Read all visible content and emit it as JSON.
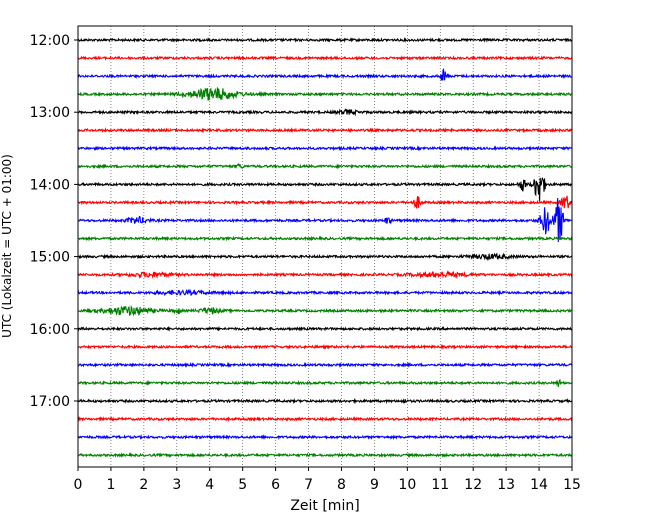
{
  "chart_data": {
    "type": "line",
    "title": "",
    "xlabel": "Zeit  [min]",
    "ylabel": "UTC (Lokalzeit = UTC + 01:00)",
    "xlim": [
      0,
      15
    ],
    "x_ticks": [
      "0",
      "1",
      "2",
      "3",
      "4",
      "5",
      "6",
      "7",
      "8",
      "9",
      "10",
      "11",
      "12",
      "13",
      "14",
      "15"
    ],
    "y_tick_labels": [
      "12:00",
      "13:00",
      "14:00",
      "15:00",
      "16:00",
      "17:00"
    ],
    "grid": "vertical dotted",
    "colors": [
      "#000000",
      "#ff0000",
      "#0000ff",
      "#008000"
    ],
    "traces": [
      {
        "time": "12:00",
        "color": "#000000",
        "events": []
      },
      {
        "time": "12:15",
        "color": "#ff0000",
        "events": []
      },
      {
        "time": "12:30",
        "color": "#0000ff",
        "events": [
          {
            "min": 11.1,
            "amp": 7,
            "width": 0.08
          }
        ]
      },
      {
        "time": "12:45",
        "color": "#008000",
        "events": [
          {
            "min": 4.1,
            "amp": 6,
            "width": 0.7
          }
        ]
      },
      {
        "time": "13:00",
        "color": "#000000",
        "events": [
          {
            "min": 8.2,
            "amp": 2,
            "width": 0.3
          }
        ]
      },
      {
        "time": "13:15",
        "color": "#ff0000",
        "events": []
      },
      {
        "time": "13:30",
        "color": "#0000ff",
        "events": []
      },
      {
        "time": "13:45",
        "color": "#008000",
        "events": [
          {
            "min": 4.9,
            "amp": 2,
            "width": 0.1
          }
        ]
      },
      {
        "time": "14:00",
        "color": "#000000",
        "events": [
          {
            "min": 13.5,
            "amp": 6,
            "width": 0.1
          },
          {
            "min": 14.0,
            "amp": 18,
            "width": 0.15
          }
        ]
      },
      {
        "time": "14:15",
        "color": "#ff0000",
        "events": [
          {
            "min": 10.3,
            "amp": 6,
            "width": 0.1
          },
          {
            "min": 14.8,
            "amp": 8,
            "width": 0.12
          }
        ]
      },
      {
        "time": "14:30",
        "color": "#0000ff",
        "events": [
          {
            "min": 1.8,
            "amp": 3,
            "width": 0.3
          },
          {
            "min": 9.4,
            "amp": 3,
            "width": 0.1
          },
          {
            "min": 14.2,
            "amp": 14,
            "width": 0.15
          },
          {
            "min": 14.6,
            "amp": 24,
            "width": 0.12
          }
        ]
      },
      {
        "time": "14:45",
        "color": "#008000",
        "events": []
      },
      {
        "time": "15:00",
        "color": "#000000",
        "events": [
          {
            "min": 12.5,
            "amp": 2,
            "width": 0.6
          }
        ]
      },
      {
        "time": "15:15",
        "color": "#ff0000",
        "events": [
          {
            "min": 2.2,
            "amp": 2,
            "width": 0.6
          },
          {
            "min": 11.0,
            "amp": 2,
            "width": 0.8
          }
        ]
      },
      {
        "time": "15:30",
        "color": "#0000ff",
        "events": [
          {
            "min": 3.2,
            "amp": 1.5,
            "width": 0.8
          }
        ]
      },
      {
        "time": "15:45",
        "color": "#008000",
        "events": [
          {
            "min": 1.5,
            "amp": 4,
            "width": 0.7
          },
          {
            "min": 3.0,
            "amp": 3,
            "width": 0.1
          },
          {
            "min": 4.0,
            "amp": 2.5,
            "width": 0.3
          }
        ]
      },
      {
        "time": "16:00",
        "color": "#000000",
        "events": []
      },
      {
        "time": "16:15",
        "color": "#ff0000",
        "events": []
      },
      {
        "time": "16:30",
        "color": "#0000ff",
        "events": []
      },
      {
        "time": "16:45",
        "color": "#008000",
        "events": [
          {
            "min": 14.6,
            "amp": 4,
            "width": 0.05
          }
        ]
      },
      {
        "time": "17:00",
        "color": "#000000",
        "events": [
          {
            "min": 9.9,
            "amp": 2,
            "width": 0.05
          }
        ]
      },
      {
        "time": "17:15",
        "color": "#ff0000",
        "events": []
      },
      {
        "time": "17:30",
        "color": "#0000ff",
        "events": []
      },
      {
        "time": "17:45",
        "color": "#008000",
        "events": []
      }
    ]
  }
}
